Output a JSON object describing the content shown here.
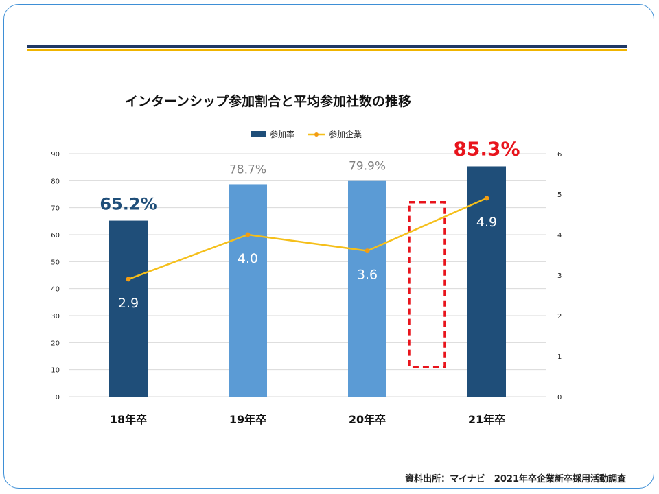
{
  "title": "インターンシップ参加割合と平均参加社数の推移",
  "source": "資料出所：マイナビ　2021年卒企業新卒採用活動調査",
  "colors": {
    "frame": "#3e8fd6",
    "rule_navy": "#1f3864",
    "rule_gold": "#f0b400",
    "bar_dark": "#1f4e79",
    "bar_light": "#5b9bd5",
    "line": "#f5bf1a",
    "highlight_red": "#e8141c",
    "label_gray": "#7f7f7f"
  },
  "chart_data": {
    "type": "bar",
    "categories": [
      "18年卒",
      "19年卒",
      "20年卒",
      "21年卒"
    ],
    "series": [
      {
        "name": "参加率",
        "kind": "bar",
        "axis": "left",
        "values": [
          65.2,
          78.7,
          79.9,
          85.3
        ],
        "labels": [
          "65.2%",
          "78.7%",
          "79.9%",
          "85.3%"
        ],
        "bar_colors": [
          "#1f4e79",
          "#5b9bd5",
          "#5b9bd5",
          "#1f4e79"
        ],
        "label_colors": [
          "#1f4e79",
          "#7f7f7f",
          "#7f7f7f",
          "#e8141c"
        ]
      },
      {
        "name": "参加企業",
        "kind": "line",
        "axis": "right",
        "values": [
          2.9,
          4.0,
          3.6,
          4.9
        ],
        "labels": [
          "2.9",
          "4.0",
          "3.6",
          "4.9"
        ]
      }
    ],
    "y_left": {
      "ticks": [
        "0",
        "10",
        "20",
        "30",
        "40",
        "50",
        "60",
        "70",
        "80",
        "90"
      ],
      "range": [
        0,
        90
      ]
    },
    "y_right": {
      "ticks": [
        "0",
        "1",
        "2",
        "3",
        "4",
        "5",
        "6"
      ],
      "range": [
        0,
        6
      ]
    },
    "grid": true,
    "legend_position": "top-center",
    "highlight": {
      "between": [
        "20年卒",
        "21年卒"
      ],
      "style": "red-dashed-box",
      "range_left": [
        11,
        72
      ]
    }
  }
}
